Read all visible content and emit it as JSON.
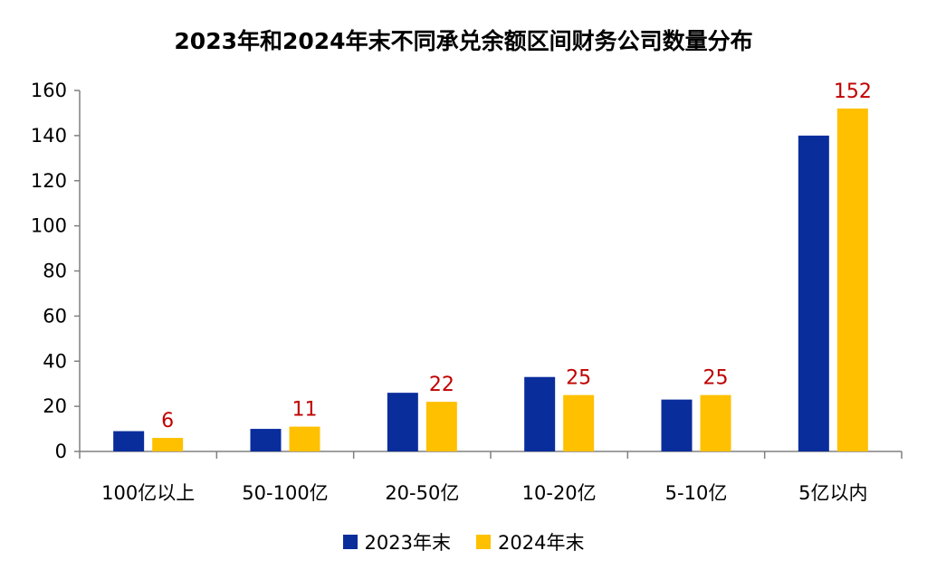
{
  "chart_data": {
    "type": "bar",
    "title": "2023年和2024年末不同承兑余额区间财务公司数量分布",
    "categories": [
      "100亿以上",
      "50-100亿",
      "20-50亿",
      "10-20亿",
      "5-10亿",
      "5亿以内"
    ],
    "series": [
      {
        "name": "2023年末",
        "color": "#0a2d9c",
        "values": [
          9,
          10,
          26,
          33,
          23,
          140
        ],
        "labels": [
          "",
          "",
          "",
          "",
          "",
          ""
        ]
      },
      {
        "name": "2024年末",
        "color": "#ffc000",
        "values": [
          6,
          11,
          22,
          25,
          25,
          152
        ],
        "labels": [
          "6",
          "11",
          "22",
          "25",
          "25",
          "152"
        ]
      }
    ],
    "ylim": [
      0,
      160
    ],
    "yticks": [
      0,
      20,
      40,
      60,
      80,
      100,
      120,
      140,
      160
    ],
    "legend_position": "bottom",
    "grid": false,
    "data_label_color": "#c00000"
  }
}
